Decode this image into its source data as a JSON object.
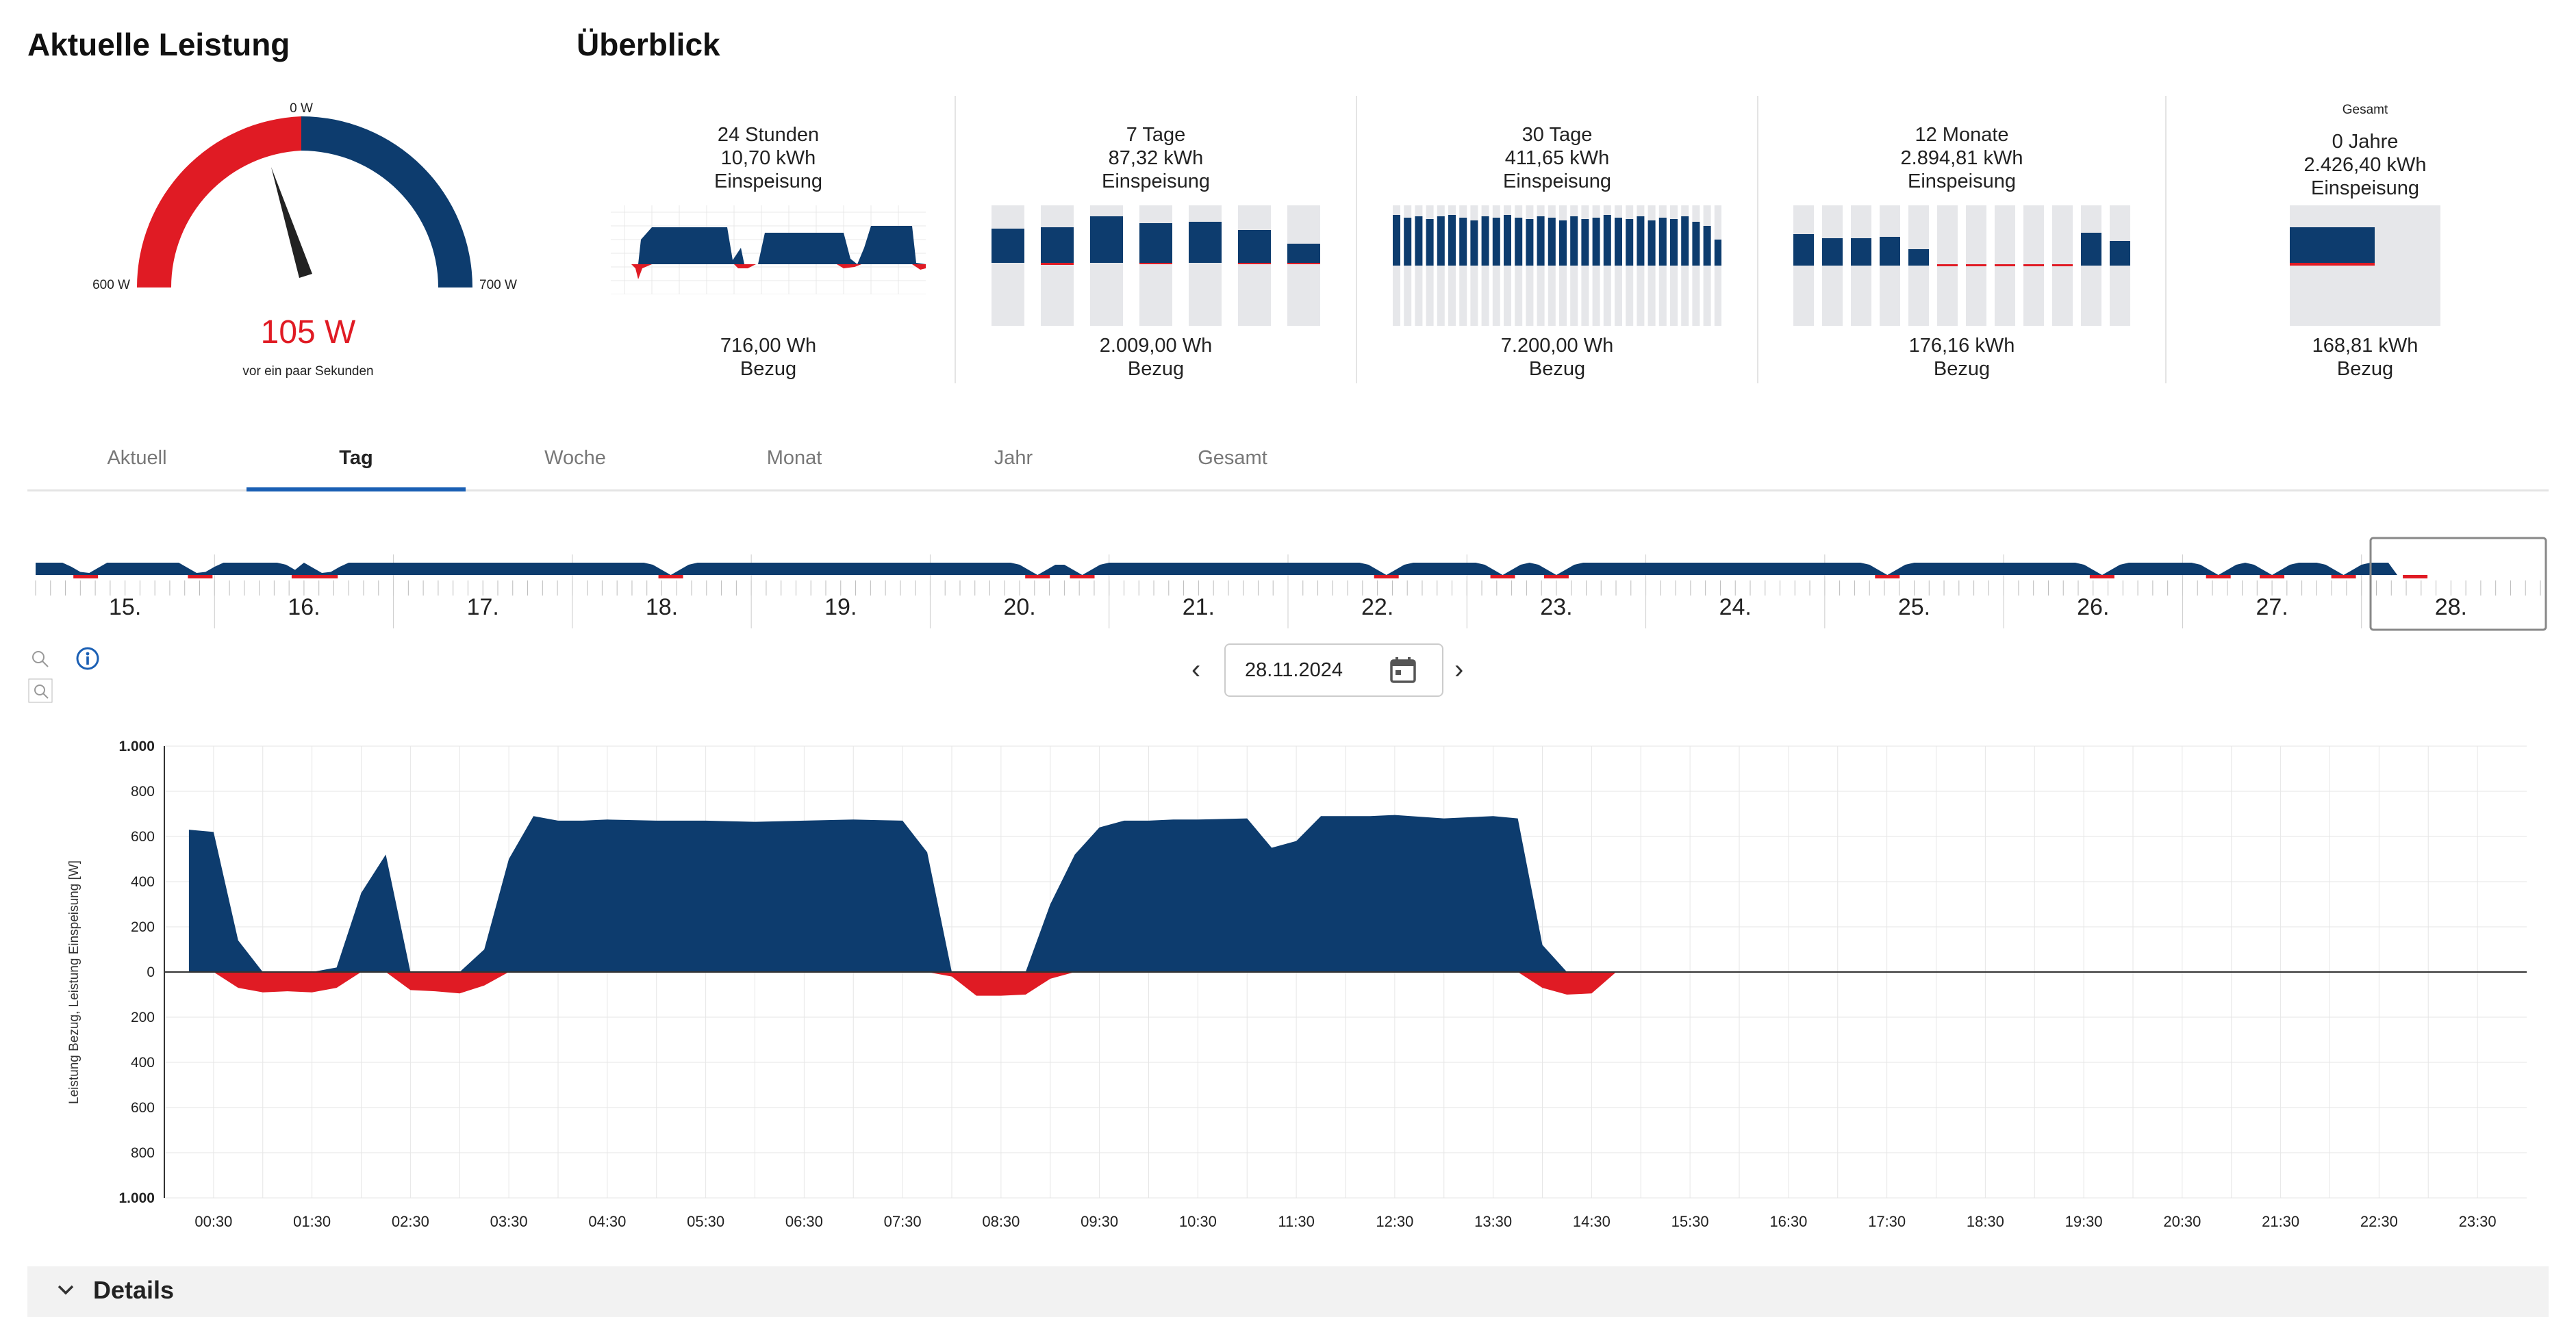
{
  "gauge": {
    "title": "Aktuelle Leistung",
    "label_top": "0 W",
    "label_left": "600 W",
    "label_right": "700 W",
    "value": "105 W",
    "subtitle": "vor ein paar Sekunden",
    "colors": {
      "bezug": "#e01b24",
      "einspeisung": "#0d3c6e"
    }
  },
  "overview": {
    "title": "Überblick",
    "cards": [
      {
        "small": "",
        "period": "24 Stunden",
        "value": "10,70 kWh",
        "label": "Einspeisung",
        "foot_value": "716,00 Wh",
        "foot_label": "Bezug"
      },
      {
        "small": "",
        "period": "7 Tage",
        "value": "87,32 kWh",
        "label": "Einspeisung",
        "foot_value": "2.009,00 Wh",
        "foot_label": "Bezug"
      },
      {
        "small": "",
        "period": "30 Tage",
        "value": "411,65 kWh",
        "label": "Einspeisung",
        "foot_value": "7.200,00 Wh",
        "foot_label": "Bezug"
      },
      {
        "small": "",
        "period": "12 Monate",
        "value": "2.894,81 kWh",
        "label": "Einspeisung",
        "foot_value": "176,16 kWh",
        "foot_label": "Bezug"
      },
      {
        "small": "Gesamt",
        "period": "0 Jahre",
        "value": "2.426,40 kWh",
        "label": "Einspeisung",
        "foot_value": "168,81 kWh",
        "foot_label": "Bezug"
      }
    ]
  },
  "tabs": [
    {
      "label": "Aktuell"
    },
    {
      "label": "Tag"
    },
    {
      "label": "Woche"
    },
    {
      "label": "Monat"
    },
    {
      "label": "Jahr"
    },
    {
      "label": "Gesamt"
    }
  ],
  "timeline": {
    "days": [
      "15.",
      "16.",
      "17.",
      "18.",
      "19.",
      "20.",
      "21.",
      "22.",
      "23.",
      "24.",
      "25.",
      "26.",
      "27.",
      "28."
    ],
    "selected": "28."
  },
  "date_picker": {
    "value": "28.11.2024",
    "prev": "‹",
    "next": "›"
  },
  "icons": {
    "zoom_in": "zoom-in-icon",
    "zoom_out": "zoom-out-icon",
    "info": "info-icon",
    "calendar": "calendar-icon"
  },
  "details": {
    "label": "Details"
  },
  "chart_data": {
    "type": "area",
    "ylabel": "Leistung Bezug, Leistung Einspeisung [W]",
    "ylim": [
      -1000,
      1000
    ],
    "yticks": [
      1000,
      800,
      600,
      400,
      200,
      0,
      200,
      400,
      600,
      800,
      1000
    ],
    "ytick_labels": [
      "1.000",
      "800",
      "600",
      "400",
      "200",
      "0",
      "200",
      "400",
      "600",
      "800",
      "1.000"
    ],
    "x_tick_labels": [
      "00:30",
      "01:30",
      "02:30",
      "03:30",
      "04:30",
      "05:30",
      "06:30",
      "07:30",
      "08:30",
      "09:30",
      "10:30",
      "11:30",
      "12:30",
      "13:30",
      "14:30",
      "15:30",
      "16:30",
      "17:30",
      "18:30",
      "19:30",
      "20:30",
      "21:30",
      "22:30",
      "23:30"
    ],
    "x_range_hours": [
      0,
      24
    ],
    "grid": true,
    "series": [
      {
        "name": "Leistung Einspeisung",
        "color": "#0d3c6e",
        "x": [
          0.25,
          0.5,
          0.75,
          1.0,
          1.25,
          1.5,
          1.75,
          2.0,
          2.25,
          2.5,
          2.75,
          3.0,
          3.25,
          3.5,
          3.75,
          4.0,
          4.25,
          4.5,
          5.0,
          5.5,
          6.0,
          6.5,
          7.0,
          7.5,
          7.75,
          8.0,
          8.25,
          8.5,
          8.75,
          9.0,
          9.25,
          9.5,
          9.75,
          10.0,
          10.25,
          10.5,
          11.0,
          11.25,
          11.5,
          11.75,
          12.0,
          12.25,
          12.5,
          13.0,
          13.5,
          13.75,
          14.0,
          14.25,
          14.5,
          14.75
        ],
        "values": [
          630,
          620,
          140,
          0,
          0,
          0,
          20,
          350,
          520,
          0,
          0,
          0,
          100,
          500,
          690,
          670,
          670,
          675,
          670,
          670,
          665,
          670,
          675,
          670,
          530,
          0,
          0,
          0,
          0,
          300,
          520,
          640,
          670,
          670,
          675,
          675,
          680,
          550,
          580,
          690,
          690,
          690,
          695,
          680,
          690,
          680,
          120,
          0,
          0,
          0
        ]
      },
      {
        "name": "Leistung Bezug",
        "color": "#e01b24",
        "x": [
          0.25,
          0.5,
          0.75,
          1.0,
          1.25,
          1.5,
          1.75,
          2.0,
          2.25,
          2.5,
          2.75,
          3.0,
          3.25,
          3.5,
          3.75,
          4.0,
          4.25,
          4.5,
          5.0,
          5.5,
          6.0,
          6.5,
          7.0,
          7.5,
          7.75,
          8.0,
          8.25,
          8.5,
          8.75,
          9.0,
          9.25,
          9.5,
          9.75,
          10.0,
          10.25,
          10.5,
          11.0,
          11.25,
          11.5,
          11.75,
          12.0,
          12.25,
          12.5,
          13.0,
          13.5,
          13.75,
          14.0,
          14.25,
          14.5,
          14.75
        ],
        "values": [
          0,
          0,
          -70,
          -90,
          -85,
          -90,
          -70,
          0,
          0,
          -80,
          -85,
          -95,
          -60,
          0,
          0,
          0,
          0,
          0,
          0,
          0,
          0,
          0,
          0,
          0,
          0,
          -20,
          -105,
          -105,
          -100,
          -30,
          0,
          0,
          0,
          0,
          0,
          0,
          0,
          0,
          0,
          0,
          0,
          0,
          0,
          0,
          0,
          0,
          -70,
          -100,
          -95,
          0
        ]
      }
    ]
  }
}
